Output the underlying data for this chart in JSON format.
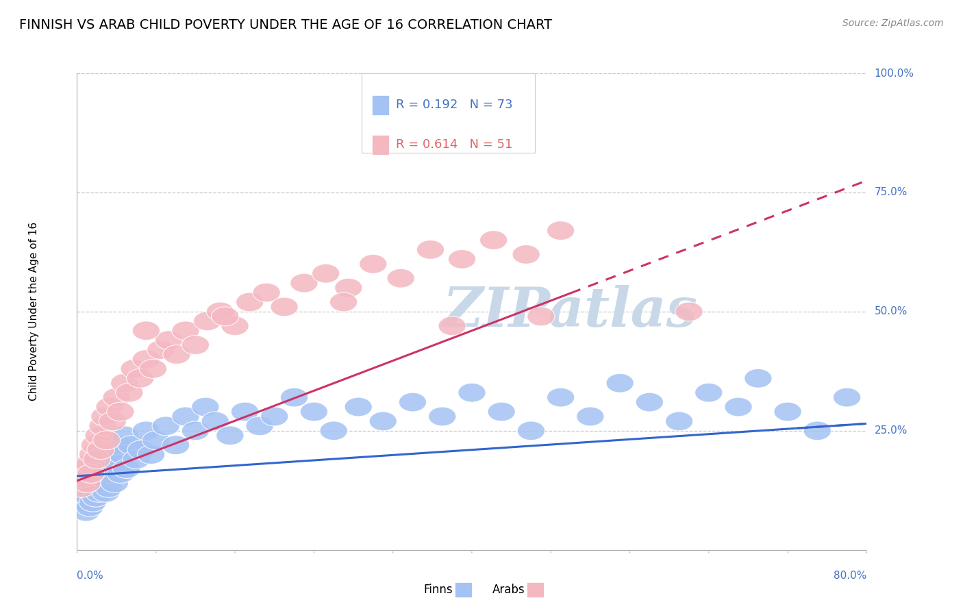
{
  "title": "FINNISH VS ARAB CHILD POVERTY UNDER THE AGE OF 16 CORRELATION CHART",
  "source": "Source: ZipAtlas.com",
  "ylabel": "Child Poverty Under the Age of 16",
  "xlim": [
    0.0,
    0.8
  ],
  "ylim": [
    -0.05,
    1.05
  ],
  "plot_ylim": [
    0.0,
    1.0
  ],
  "yticks": [
    0.0,
    0.25,
    0.5,
    0.75,
    1.0
  ],
  "ytick_labels": [
    "",
    "25.0%",
    "50.0%",
    "75.0%",
    "100.0%"
  ],
  "legend_r_finns": "R = 0.192",
  "legend_n_finns": "N = 73",
  "legend_r_arabs": "R = 0.614",
  "legend_n_arabs": "N = 51",
  "finn_color": "#a4c2f4",
  "arab_color": "#f4b8c1",
  "finn_line_color": "#3366cc",
  "arab_line_color": "#cc3366",
  "background_color": "#ffffff",
  "grid_color": "#c8c8c8",
  "watermark_color": "#c8d8e8",
  "title_fontsize": 14,
  "axis_label_fontsize": 11,
  "tick_fontsize": 11,
  "legend_fontsize": 13,
  "finns_x": [
    0.005,
    0.007,
    0.009,
    0.01,
    0.012,
    0.013,
    0.014,
    0.015,
    0.016,
    0.017,
    0.018,
    0.019,
    0.02,
    0.021,
    0.022,
    0.023,
    0.024,
    0.025,
    0.026,
    0.027,
    0.028,
    0.029,
    0.03,
    0.03,
    0.031,
    0.032,
    0.033,
    0.035,
    0.036,
    0.038,
    0.04,
    0.042,
    0.044,
    0.046,
    0.048,
    0.05,
    0.055,
    0.06,
    0.065,
    0.07,
    0.075,
    0.08,
    0.09,
    0.1,
    0.11,
    0.12,
    0.13,
    0.14,
    0.155,
    0.17,
    0.185,
    0.2,
    0.22,
    0.24,
    0.26,
    0.285,
    0.31,
    0.34,
    0.37,
    0.4,
    0.43,
    0.46,
    0.49,
    0.52,
    0.55,
    0.58,
    0.61,
    0.64,
    0.67,
    0.69,
    0.72,
    0.75,
    0.78
  ],
  "finns_y": [
    0.12,
    0.1,
    0.08,
    0.13,
    0.11,
    0.09,
    0.14,
    0.12,
    0.1,
    0.15,
    0.13,
    0.11,
    0.16,
    0.14,
    0.12,
    0.17,
    0.15,
    0.13,
    0.18,
    0.16,
    0.14,
    0.12,
    0.17,
    0.19,
    0.15,
    0.13,
    0.18,
    0.16,
    0.2,
    0.14,
    0.22,
    0.18,
    0.16,
    0.2,
    0.24,
    0.17,
    0.22,
    0.19,
    0.21,
    0.25,
    0.2,
    0.23,
    0.26,
    0.22,
    0.28,
    0.25,
    0.3,
    0.27,
    0.24,
    0.29,
    0.26,
    0.28,
    0.32,
    0.29,
    0.25,
    0.3,
    0.27,
    0.31,
    0.28,
    0.33,
    0.29,
    0.25,
    0.32,
    0.28,
    0.35,
    0.31,
    0.27,
    0.33,
    0.3,
    0.36,
    0.29,
    0.25,
    0.32
  ],
  "arabs_x": [
    0.004,
    0.006,
    0.008,
    0.01,
    0.012,
    0.014,
    0.016,
    0.018,
    0.02,
    0.022,
    0.024,
    0.026,
    0.028,
    0.03,
    0.033,
    0.036,
    0.04,
    0.044,
    0.048,
    0.053,
    0.058,
    0.064,
    0.07,
    0.077,
    0.085,
    0.093,
    0.101,
    0.11,
    0.12,
    0.132,
    0.145,
    0.16,
    0.175,
    0.192,
    0.21,
    0.23,
    0.252,
    0.275,
    0.3,
    0.328,
    0.358,
    0.39,
    0.422,
    0.455,
    0.49,
    0.07,
    0.15,
    0.27,
    0.38,
    0.47,
    0.62
  ],
  "arabs_y": [
    0.13,
    0.15,
    0.17,
    0.14,
    0.18,
    0.16,
    0.2,
    0.22,
    0.19,
    0.24,
    0.21,
    0.26,
    0.28,
    0.23,
    0.3,
    0.27,
    0.32,
    0.29,
    0.35,
    0.33,
    0.38,
    0.36,
    0.4,
    0.38,
    0.42,
    0.44,
    0.41,
    0.46,
    0.43,
    0.48,
    0.5,
    0.47,
    0.52,
    0.54,
    0.51,
    0.56,
    0.58,
    0.55,
    0.6,
    0.57,
    0.63,
    0.61,
    0.65,
    0.62,
    0.67,
    0.46,
    0.49,
    0.52,
    0.47,
    0.49,
    0.5
  ],
  "finn_trend": [
    0.0,
    0.8,
    0.155,
    0.265
  ],
  "arab_trend": [
    0.0,
    0.8,
    0.145,
    0.775
  ],
  "arab_trend_solid_end": 0.5
}
